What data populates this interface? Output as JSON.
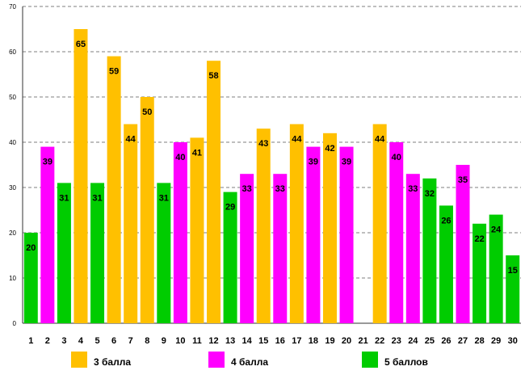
{
  "chart_data": {
    "type": "bar",
    "title": "",
    "xlabel": "",
    "ylabel": "",
    "ylim": [
      0,
      70
    ],
    "yticks": [
      0,
      10,
      20,
      30,
      40,
      50,
      60,
      70
    ],
    "grid": true,
    "legend_position": "bottom",
    "categories": [
      "1",
      "2",
      "3",
      "4",
      "5",
      "6",
      "7",
      "8",
      "9",
      "10",
      "11",
      "12",
      "13",
      "14",
      "15",
      "16",
      "17",
      "18",
      "19",
      "20",
      "21",
      "22",
      "23",
      "24",
      "25",
      "26",
      "27",
      "28",
      "29",
      "30"
    ],
    "values": [
      20,
      39,
      31,
      65,
      31,
      59,
      44,
      50,
      31,
      40,
      41,
      58,
      29,
      33,
      43,
      33,
      44,
      39,
      42,
      39,
      null,
      44,
      40,
      33,
      32,
      26,
      35,
      22,
      24,
      15
    ],
    "grades": [
      "5",
      "4",
      "5",
      "3",
      "5",
      "3",
      "3",
      "3",
      "5",
      "4",
      "3",
      "3",
      "5",
      "4",
      "3",
      "4",
      "3",
      "4",
      "3",
      "4",
      null,
      "3",
      "4",
      "4",
      "5",
      "5",
      "4",
      "5",
      "5",
      "5"
    ],
    "series": [
      {
        "key": "3",
        "name": "3 балла",
        "color": "#FFC000"
      },
      {
        "key": "4",
        "name": "4 балла",
        "color": "#FF00FF"
      },
      {
        "key": "5",
        "name": "5 баллов",
        "color": "#00CC00"
      }
    ]
  }
}
